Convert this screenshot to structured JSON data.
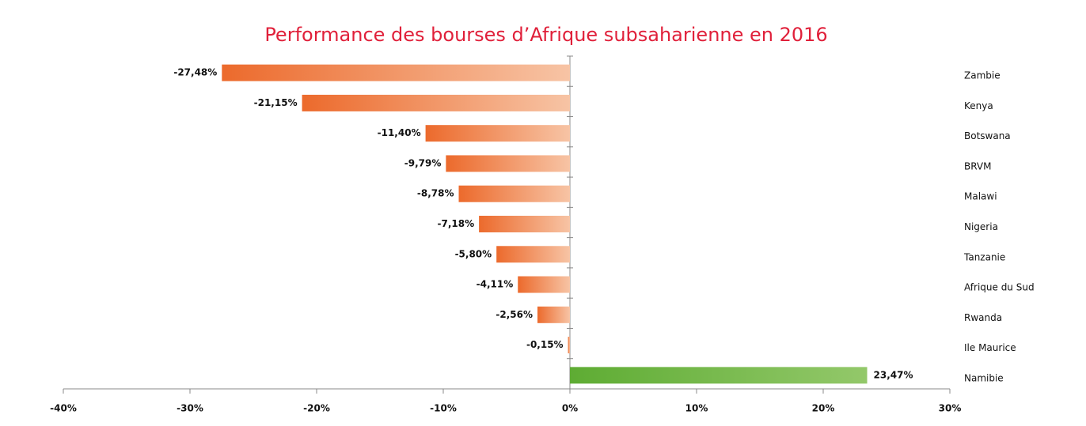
{
  "chart_data": {
    "type": "hbar",
    "title": "Performance des bourses d’Afrique subsaharienne en 2016",
    "categories": [
      "Zambie",
      "Kenya",
      "Botswana",
      "BRVM",
      "Malawi",
      "Nigeria",
      "Tanzanie",
      "Afrique du Sud",
      "Rwanda",
      "Ile Maurice",
      "Namibie"
    ],
    "values": [
      -27.48,
      -21.15,
      -11.4,
      -9.79,
      -8.78,
      -7.18,
      -5.8,
      -4.11,
      -2.56,
      -0.15,
      23.47
    ],
    "value_labels": [
      "-27,48%",
      "-21,15%",
      "-11,40%",
      "-9,79%",
      "-8,78%",
      "-7,18%",
      "-5,80%",
      "-4,11%",
      "-2,56%",
      "-0,15%",
      "23,47%"
    ],
    "color": "#ec6a2c",
    "positive_color": "#5eac33",
    "xlim": [
      -40,
      30
    ],
    "xticks": [
      {
        "value": -40,
        "label": "-40%"
      },
      {
        "value": -30,
        "label": "-30%"
      },
      {
        "value": -20,
        "label": "-20%"
      },
      {
        "value": -10,
        "label": "-10%"
      },
      {
        "value": 0,
        "label": "0%"
      },
      {
        "value": 10,
        "label": "10%"
      },
      {
        "value": 20,
        "label": "20%"
      },
      {
        "value": 30,
        "label": "30%"
      }
    ]
  }
}
